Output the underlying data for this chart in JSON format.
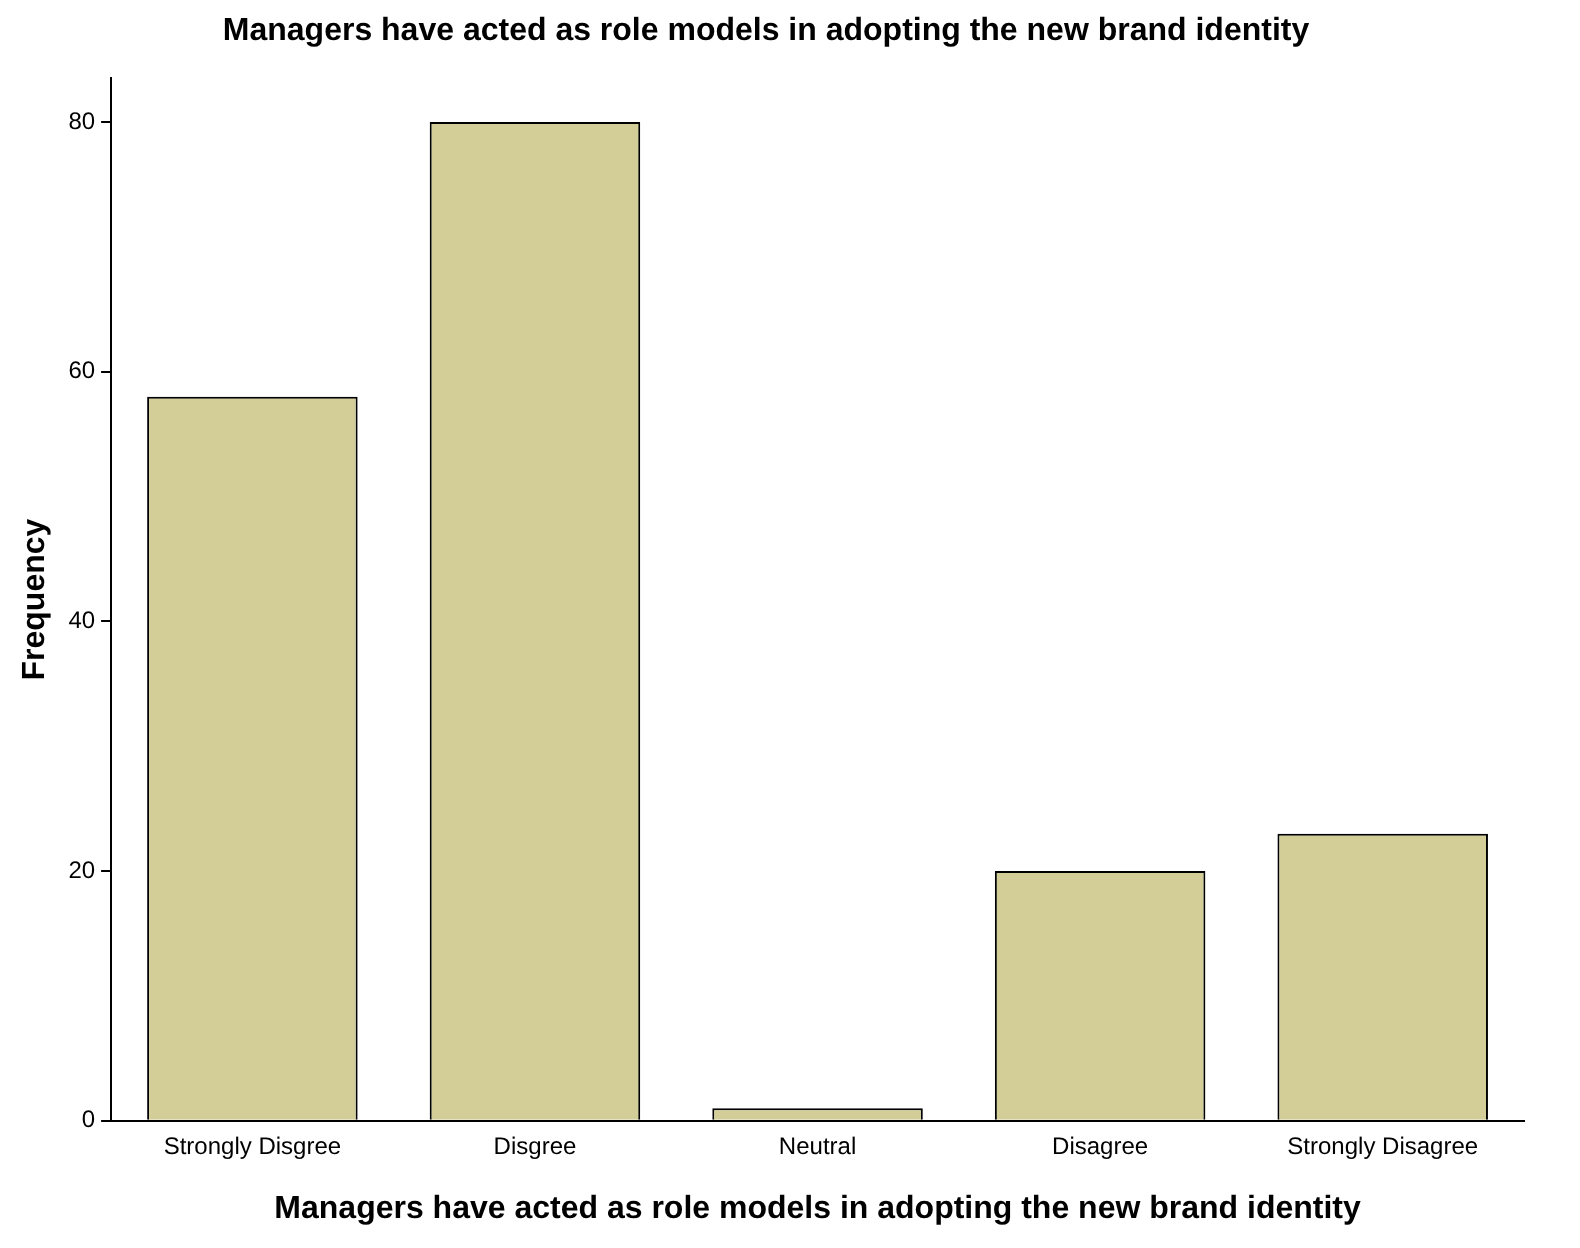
{
  "chart_data": {
    "type": "bar",
    "title": "Managers have acted as role models in adopting the new brand identity",
    "xlabel": "Managers have acted as role models in adopting the new brand identity",
    "ylabel": "Frequency",
    "categories": [
      "Strongly Disgree",
      "Disgree",
      "Neutral",
      "Disagree",
      "Strongly Disagree"
    ],
    "values": [
      58,
      80,
      1,
      20,
      23
    ],
    "color": "#d3ce97",
    "ylim": [
      0,
      83.5
    ],
    "yticks": [
      0,
      20,
      40,
      60,
      80
    ],
    "grid": false,
    "legend": false
  }
}
